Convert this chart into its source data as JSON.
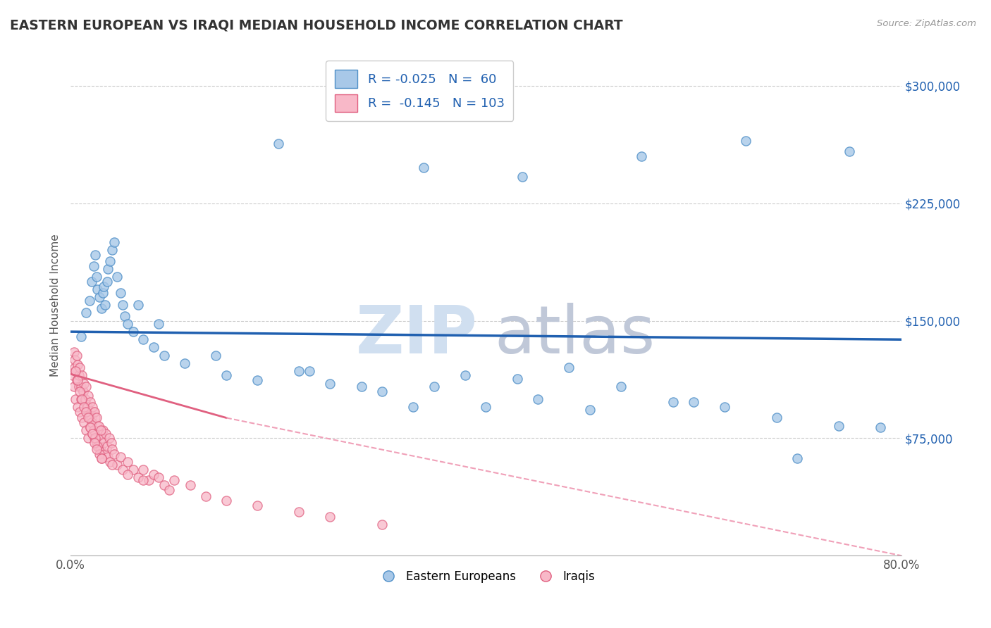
{
  "title": "EASTERN EUROPEAN VS IRAQI MEDIAN HOUSEHOLD INCOME CORRELATION CHART",
  "source_text": "Source: ZipAtlas.com",
  "ylabel": "Median Household Income",
  "xlim": [
    0.0,
    80.0
  ],
  "ylim": [
    0,
    320000
  ],
  "yticks": [
    75000,
    150000,
    225000,
    300000
  ],
  "ytick_labels": [
    "$75,000",
    "$150,000",
    "$225,000",
    "$300,000"
  ],
  "xtick_labels": [
    "0.0%",
    "80.0%"
  ],
  "xtick_positions": [
    0,
    80
  ],
  "blue_color": "#a8c8e8",
  "blue_edge_color": "#5090c8",
  "pink_color": "#f8b8c8",
  "pink_edge_color": "#e06080",
  "blue_line_color": "#2060b0",
  "pink_solid_color": "#e06080",
  "pink_dash_color": "#f0a0b8",
  "R_blue": -0.025,
  "N_blue": 60,
  "R_pink": -0.145,
  "N_pink": 103,
  "watermark_zip": "ZIP",
  "watermark_atlas": "atlas",
  "background_color": "#ffffff",
  "grid_color": "#cccccc",
  "blue_line_y0": 143000,
  "blue_line_y1": 138000,
  "pink_solid_x0": 0,
  "pink_solid_x1": 15,
  "pink_solid_y0": 116000,
  "pink_solid_y1": 88000,
  "pink_dash_x0": 15,
  "pink_dash_x1": 80,
  "pink_dash_y0": 88000,
  "pink_dash_y1": 0,
  "blue_scatter_x": [
    1.0,
    1.5,
    1.8,
    2.0,
    2.2,
    2.4,
    2.5,
    2.6,
    2.8,
    3.0,
    3.1,
    3.2,
    3.3,
    3.5,
    3.6,
    3.8,
    4.0,
    4.2,
    4.5,
    4.8,
    5.0,
    5.2,
    5.5,
    6.0,
    7.0,
    8.0,
    9.0,
    11.0,
    14.0,
    18.0,
    23.0,
    28.0,
    33.0,
    38.0,
    43.0,
    48.0,
    53.0,
    58.0,
    63.0,
    68.0,
    74.0,
    78.0,
    20.0,
    34.0,
    43.5,
    55.0,
    65.0,
    75.0,
    45.0,
    30.0,
    40.0,
    50.0,
    60.0,
    70.0,
    25.0,
    35.0,
    15.0,
    22.0,
    8.5,
    6.5
  ],
  "blue_scatter_y": [
    140000,
    155000,
    163000,
    175000,
    185000,
    192000,
    178000,
    170000,
    165000,
    158000,
    168000,
    172000,
    160000,
    175000,
    183000,
    188000,
    195000,
    200000,
    178000,
    168000,
    160000,
    153000,
    148000,
    143000,
    138000,
    133000,
    128000,
    123000,
    128000,
    112000,
    118000,
    108000,
    95000,
    115000,
    113000,
    120000,
    108000,
    98000,
    95000,
    88000,
    83000,
    82000,
    263000,
    248000,
    242000,
    255000,
    265000,
    258000,
    100000,
    105000,
    95000,
    93000,
    98000,
    62000,
    110000,
    108000,
    115000,
    118000,
    148000,
    160000
  ],
  "pink_scatter_x": [
    0.2,
    0.3,
    0.4,
    0.5,
    0.6,
    0.7,
    0.8,
    0.9,
    1.0,
    1.1,
    1.2,
    1.3,
    1.4,
    1.5,
    1.6,
    1.7,
    1.8,
    1.9,
    2.0,
    2.1,
    2.2,
    2.3,
    2.4,
    2.5,
    2.6,
    2.7,
    2.8,
    2.9,
    3.0,
    3.1,
    3.2,
    3.3,
    3.4,
    3.5,
    3.6,
    3.7,
    3.8,
    3.9,
    4.0,
    4.2,
    4.5,
    4.8,
    5.0,
    5.5,
    6.0,
    6.5,
    7.0,
    7.5,
    8.0,
    9.0,
    10.0,
    0.3,
    0.4,
    0.5,
    0.6,
    0.7,
    0.8,
    0.9,
    1.0,
    1.1,
    1.2,
    1.3,
    1.4,
    1.5,
    1.6,
    1.7,
    1.8,
    1.9,
    2.0,
    2.1,
    2.2,
    2.3,
    2.4,
    2.5,
    2.6,
    2.7,
    2.8,
    2.9,
    3.0,
    0.5,
    0.7,
    0.9,
    1.1,
    1.3,
    1.5,
    1.7,
    1.9,
    2.1,
    2.3,
    2.5,
    3.0,
    4.0,
    5.5,
    7.0,
    9.5,
    13.0,
    18.0,
    25.0,
    11.5,
    8.5,
    15.0,
    22.0,
    30.0
  ],
  "pink_scatter_y": [
    115000,
    108000,
    120000,
    100000,
    112000,
    95000,
    108000,
    92000,
    100000,
    88000,
    105000,
    85000,
    98000,
    80000,
    95000,
    75000,
    90000,
    82000,
    88000,
    78000,
    92000,
    75000,
    88000,
    72000,
    83000,
    70000,
    78000,
    68000,
    75000,
    80000,
    72000,
    65000,
    78000,
    70000,
    63000,
    75000,
    60000,
    72000,
    68000,
    65000,
    58000,
    63000,
    55000,
    60000,
    55000,
    50000,
    55000,
    48000,
    52000,
    45000,
    48000,
    130000,
    125000,
    118000,
    128000,
    122000,
    115000,
    120000,
    108000,
    115000,
    105000,
    110000,
    100000,
    108000,
    95000,
    102000,
    88000,
    98000,
    85000,
    95000,
    80000,
    92000,
    75000,
    88000,
    70000,
    83000,
    65000,
    80000,
    62000,
    118000,
    112000,
    105000,
    100000,
    95000,
    92000,
    88000,
    82000,
    78000,
    72000,
    68000,
    62000,
    58000,
    52000,
    48000,
    42000,
    38000,
    32000,
    25000,
    45000,
    50000,
    35000,
    28000,
    20000
  ]
}
